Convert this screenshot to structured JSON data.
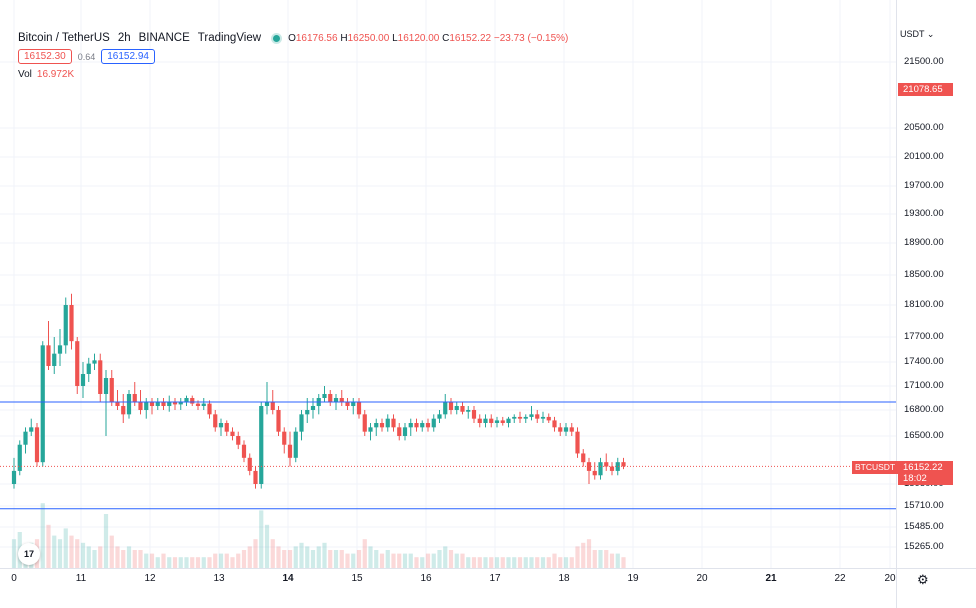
{
  "legend": {
    "symbol": "Bitcoin / TetherUS",
    "interval": "2h",
    "exchange": "BINANCE",
    "source": "TradingView",
    "o_key": "O",
    "o_val": "16176.56",
    "h_key": "H",
    "h_val": "16250.00",
    "l_key": "L",
    "l_val": "16120.00",
    "c_key": "C",
    "c_val": "16152.22",
    "change": "−23.73 (−0.15%)",
    "bid": "16152.30",
    "spread": "0.64",
    "ask": "16152.94",
    "vol_label": "Vol",
    "vol_value": "16.972K"
  },
  "price_axis": {
    "currency": "USDT",
    "ticks": [
      "21500.00",
      "20500.00",
      "20100.00",
      "19700.00",
      "19300.00",
      "18900.00",
      "18500.00",
      "18100.00",
      "17700.00",
      "17400.00",
      "17100.00",
      "16800.00",
      "16500.00",
      "15950.00",
      "15710.00",
      "15485.00",
      "15265.00"
    ],
    "high_label": "21078.65",
    "last_price": "16152.22",
    "countdown": "18:02",
    "symbol_tag": "BTCUSDT"
  },
  "time_axis": {
    "ticks": [
      {
        "label": "0",
        "bold": false
      },
      {
        "label": "11",
        "bold": false
      },
      {
        "label": "12",
        "bold": false
      },
      {
        "label": "13",
        "bold": false
      },
      {
        "label": "14",
        "bold": true
      },
      {
        "label": "15",
        "bold": false
      },
      {
        "label": "16",
        "bold": false
      },
      {
        "label": "17",
        "bold": false
      },
      {
        "label": "18",
        "bold": false
      },
      {
        "label": "19",
        "bold": false
      },
      {
        "label": "20",
        "bold": false
      },
      {
        "label": "21",
        "bold": true
      },
      {
        "label": "22",
        "bold": false
      },
      {
        "label": "20",
        "bold": false
      }
    ]
  },
  "logo": "17",
  "colors": {
    "up": "#26a69a",
    "down": "#ef5350",
    "hline": "#2962ff",
    "grid": "#f0f3fa"
  },
  "chart_data": {
    "type": "candlestick",
    "interval": "2h",
    "horizontal_lines": [
      16900,
      15680
    ],
    "last_price": 16152.22,
    "candles": [
      [
        15950,
        16250,
        15900,
        16100,
        8
      ],
      [
        16100,
        16450,
        16050,
        16400,
        10
      ],
      [
        16400,
        16600,
        16300,
        16550,
        6
      ],
      [
        16550,
        16700,
        16500,
        16600,
        7
      ],
      [
        16600,
        16650,
        16150,
        16200,
        8
      ],
      [
        16200,
        17650,
        16150,
        17600,
        18
      ],
      [
        17600,
        17900,
        17300,
        17350,
        12
      ],
      [
        17350,
        17700,
        17250,
        17500,
        9
      ],
      [
        17500,
        17800,
        17350,
        17600,
        8
      ],
      [
        17600,
        18200,
        17500,
        18100,
        11
      ],
      [
        18100,
        18250,
        17550,
        17650,
        9
      ],
      [
        17650,
        17700,
        17000,
        17100,
        8
      ],
      [
        17100,
        17400,
        16950,
        17250,
        7
      ],
      [
        17250,
        17450,
        17150,
        17380,
        6
      ],
      [
        17380,
        17500,
        17300,
        17420,
        5
      ],
      [
        17420,
        17500,
        16900,
        17000,
        6
      ],
      [
        17000,
        17300,
        16500,
        17200,
        15
      ],
      [
        17200,
        17300,
        16850,
        16900,
        9
      ],
      [
        16900,
        17050,
        16800,
        16850,
        6
      ],
      [
        16850,
        17000,
        16650,
        16750,
        5
      ],
      [
        16750,
        17050,
        16700,
        17000,
        6
      ],
      [
        17000,
        17150,
        16850,
        16900,
        5
      ],
      [
        16900,
        17050,
        16750,
        16800,
        5
      ],
      [
        16800,
        16950,
        16700,
        16900,
        4
      ],
      [
        16900,
        16950,
        16750,
        16850,
        4
      ],
      [
        16850,
        16950,
        16800,
        16900,
        3
      ],
      [
        16900,
        16950,
        16800,
        16850,
        4
      ],
      [
        16850,
        16980,
        16780,
        16900,
        3
      ],
      [
        16900,
        16950,
        16800,
        16870,
        3
      ],
      [
        16870,
        16950,
        16800,
        16900,
        3
      ],
      [
        16900,
        16980,
        16850,
        16950,
        3
      ],
      [
        16950,
        16980,
        16850,
        16880,
        3
      ],
      [
        16880,
        16920,
        16800,
        16850,
        3
      ],
      [
        16850,
        16950,
        16800,
        16880,
        3
      ],
      [
        16880,
        16920,
        16700,
        16750,
        3
      ],
      [
        16750,
        16800,
        16550,
        16600,
        4
      ],
      [
        16600,
        16700,
        16500,
        16650,
        4
      ],
      [
        16650,
        16680,
        16500,
        16550,
        4
      ],
      [
        16550,
        16600,
        16450,
        16500,
        3
      ],
      [
        16500,
        16550,
        16350,
        16400,
        4
      ],
      [
        16400,
        16450,
        16200,
        16250,
        5
      ],
      [
        16250,
        16300,
        16050,
        16100,
        6
      ],
      [
        16100,
        16150,
        15900,
        15950,
        8
      ],
      [
        15950,
        16900,
        15900,
        16850,
        16
      ],
      [
        16850,
        17150,
        16750,
        16900,
        12
      ],
      [
        16900,
        17050,
        16750,
        16800,
        8
      ],
      [
        16800,
        16850,
        16500,
        16550,
        6
      ],
      [
        16550,
        16600,
        16300,
        16400,
        5
      ],
      [
        16400,
        16550,
        16150,
        16250,
        5
      ],
      [
        16250,
        16600,
        16200,
        16550,
        6
      ],
      [
        16550,
        16800,
        16450,
        16750,
        7
      ],
      [
        16750,
        16950,
        16650,
        16800,
        6
      ],
      [
        16800,
        16950,
        16700,
        16850,
        5
      ],
      [
        16850,
        17000,
        16750,
        16950,
        6
      ],
      [
        16950,
        17100,
        16900,
        17000,
        7
      ],
      [
        17000,
        17050,
        16850,
        16900,
        5
      ],
      [
        16900,
        17000,
        16800,
        16950,
        5
      ],
      [
        16950,
        17050,
        16850,
        16900,
        5
      ],
      [
        16900,
        16950,
        16800,
        16850,
        4
      ],
      [
        16850,
        16950,
        16750,
        16900,
        4
      ],
      [
        16900,
        16950,
        16700,
        16750,
        5
      ],
      [
        16750,
        16800,
        16500,
        16550,
        8
      ],
      [
        16550,
        16650,
        16450,
        16600,
        6
      ],
      [
        16600,
        16700,
        16500,
        16650,
        5
      ],
      [
        16650,
        16700,
        16550,
        16600,
        4
      ],
      [
        16600,
        16750,
        16550,
        16700,
        5
      ],
      [
        16700,
        16750,
        16550,
        16600,
        4
      ],
      [
        16600,
        16650,
        16450,
        16500,
        4
      ],
      [
        16500,
        16650,
        16450,
        16600,
        4
      ],
      [
        16600,
        16700,
        16500,
        16650,
        4
      ],
      [
        16650,
        16700,
        16550,
        16600,
        3
      ],
      [
        16600,
        16680,
        16550,
        16650,
        3
      ],
      [
        16650,
        16700,
        16550,
        16600,
        4
      ],
      [
        16600,
        16750,
        16550,
        16700,
        4
      ],
      [
        16700,
        16800,
        16650,
        16750,
        5
      ],
      [
        16750,
        17000,
        16700,
        16900,
        6
      ],
      [
        16900,
        16950,
        16750,
        16800,
        5
      ],
      [
        16800,
        16900,
        16750,
        16850,
        4
      ],
      [
        16850,
        16900,
        16750,
        16780,
        4
      ],
      [
        16780,
        16850,
        16700,
        16800,
        3
      ],
      [
        16800,
        16850,
        16650,
        16700,
        3
      ],
      [
        16700,
        16750,
        16600,
        16650,
        3
      ],
      [
        16650,
        16750,
        16600,
        16700,
        3
      ],
      [
        16700,
        16750,
        16600,
        16650,
        3
      ],
      [
        16650,
        16720,
        16600,
        16680,
        3
      ],
      [
        16680,
        16720,
        16620,
        16650,
        3
      ],
      [
        16650,
        16720,
        16600,
        16700,
        3
      ],
      [
        16700,
        16750,
        16650,
        16720,
        3
      ],
      [
        16720,
        16780,
        16650,
        16700,
        3
      ],
      [
        16700,
        16750,
        16650,
        16720,
        3
      ],
      [
        16720,
        16850,
        16680,
        16750,
        3
      ],
      [
        16750,
        16800,
        16650,
        16700,
        3
      ],
      [
        16700,
        16780,
        16650,
        16720,
        3
      ],
      [
        16720,
        16760,
        16650,
        16680,
        3
      ],
      [
        16680,
        16720,
        16550,
        16600,
        4
      ],
      [
        16600,
        16650,
        16500,
        16550,
        3
      ],
      [
        16550,
        16650,
        16500,
        16600,
        3
      ],
      [
        16600,
        16650,
        16500,
        16550,
        3
      ],
      [
        16550,
        16600,
        16250,
        16300,
        6
      ],
      [
        16300,
        16350,
        16150,
        16200,
        7
      ],
      [
        16200,
        16250,
        15950,
        16100,
        8
      ],
      [
        16100,
        16200,
        16000,
        16050,
        5
      ],
      [
        16050,
        16250,
        16000,
        16200,
        5
      ],
      [
        16200,
        16300,
        16100,
        16150,
        5
      ],
      [
        16150,
        16200,
        16050,
        16100,
        4
      ],
      [
        16100,
        16250,
        16050,
        16200,
        4
      ],
      [
        16200,
        16250,
        16120,
        16152,
        3
      ]
    ]
  }
}
